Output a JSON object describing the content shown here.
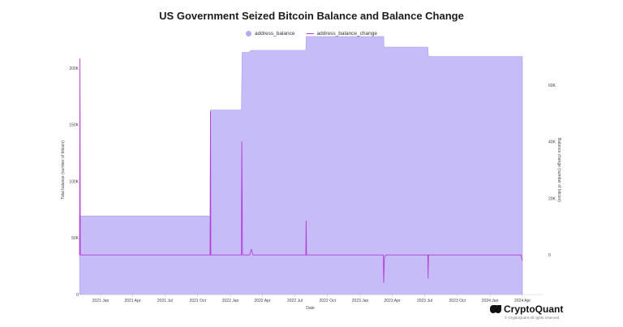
{
  "chart_data": {
    "type": "area",
    "title": "US Government Seized Bitcoin Balance and Balance Change",
    "xlabel": "Date",
    "ylabel_left": "Total balance (number of bitcoin)",
    "ylabel_right": "Balance change (number of bitcoin)",
    "watermark": "CryptoQuant",
    "x_ticks": [
      "2021 Jan",
      "2021 Apr",
      "2021 Jul",
      "2021 Oct",
      "2022 Jan",
      "2022 Apr",
      "2022 Jul",
      "2022 Oct",
      "2023 Jan",
      "2023 Apr",
      "2023 Jul",
      "2023 Oct",
      "2024 Jan",
      "2024 Apr"
    ],
    "y_left_ticks": [
      "0",
      "50K",
      "100K",
      "150K",
      "200K"
    ],
    "y_left_values": [
      0,
      50000,
      100000,
      150000,
      200000
    ],
    "y_left_range": [
      0,
      220000
    ],
    "y_right_ticks": [
      "0",
      "20K",
      "40K",
      "60K"
    ],
    "y_right_values": [
      0,
      20000,
      40000,
      60000
    ],
    "y_right_range": [
      -14000,
      74000
    ],
    "grid": false,
    "legend_position": "top-center",
    "series": [
      {
        "name": "address_balance",
        "kind": "area",
        "color": "#c6bcf7",
        "points": [
          [
            "2020-11-03",
            69370
          ],
          [
            "2021-11-05",
            69370
          ],
          [
            "2021-11-06",
            163000
          ],
          [
            "2022-02-01",
            163000
          ],
          [
            "2022-02-03",
            213900
          ],
          [
            "2022-02-20",
            213900
          ],
          [
            "2022-03-01",
            215700
          ],
          [
            "2022-08-01",
            215700
          ],
          [
            "2022-08-02",
            227800
          ],
          [
            "2023-03-08",
            227800
          ],
          [
            "2023-03-09",
            218600
          ],
          [
            "2023-07-10",
            218600
          ],
          [
            "2023-07-12",
            210200
          ],
          [
            "2024-04-01",
            210200
          ]
        ]
      },
      {
        "name": "address_balance_change",
        "kind": "line",
        "color": "#b53ad6",
        "points": [
          [
            "2020-11-03",
            0
          ],
          [
            "2020-11-04",
            69370
          ],
          [
            "2020-11-05",
            0
          ],
          [
            "2021-11-05",
            0
          ],
          [
            "2021-11-06",
            50676
          ],
          [
            "2021-11-07",
            0
          ],
          [
            "2022-02-01",
            0
          ],
          [
            "2022-02-02",
            40000
          ],
          [
            "2022-02-04",
            0
          ],
          [
            "2022-02-24",
            0
          ],
          [
            "2022-03-01",
            2000
          ],
          [
            "2022-03-05",
            0
          ],
          [
            "2022-08-01",
            0
          ],
          [
            "2022-08-02",
            12000
          ],
          [
            "2022-08-03",
            0
          ],
          [
            "2023-03-07",
            0
          ],
          [
            "2023-03-08",
            -9800
          ],
          [
            "2023-03-10",
            -1000
          ],
          [
            "2023-03-14",
            0
          ],
          [
            "2023-07-10",
            0
          ],
          [
            "2023-07-11",
            -8200
          ],
          [
            "2023-07-12",
            0
          ],
          [
            "2024-03-28",
            0
          ],
          [
            "2024-04-01",
            -2000
          ]
        ]
      }
    ]
  },
  "branding": {
    "name": "CryptoQuant",
    "copyright": "© CryptoQuant All rights reserved"
  }
}
